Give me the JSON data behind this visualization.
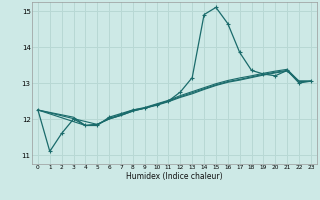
{
  "xlabel": "Humidex (Indice chaleur)",
  "xlim": [
    -0.5,
    23.5
  ],
  "ylim": [
    10.75,
    15.25
  ],
  "yticks": [
    11,
    12,
    13,
    14,
    15
  ],
  "xticks": [
    0,
    1,
    2,
    3,
    4,
    5,
    6,
    7,
    8,
    9,
    10,
    11,
    12,
    13,
    14,
    15,
    16,
    17,
    18,
    19,
    20,
    21,
    22,
    23
  ],
  "bg_color": "#cde9e6",
  "grid_color": "#b8d8d4",
  "line_color": "#1a6b6b",
  "lines": [
    {
      "x": [
        0,
        1,
        2,
        3,
        4,
        5,
        6,
        7,
        8,
        9,
        10,
        11,
        12,
        13,
        14,
        15,
        16,
        17,
        18,
        19,
        20,
        21,
        22,
        23
      ],
      "y": [
        12.25,
        11.1,
        11.6,
        12.0,
        11.82,
        11.82,
        12.05,
        12.15,
        12.25,
        12.3,
        12.4,
        12.5,
        12.75,
        13.15,
        14.9,
        15.1,
        14.65,
        13.85,
        13.35,
        13.25,
        13.2,
        13.35,
        13.0,
        13.05
      ],
      "marker": true
    },
    {
      "x": [
        0,
        3,
        4,
        5,
        6,
        7,
        8,
        9,
        10,
        11,
        12,
        13,
        14,
        15,
        16,
        17,
        18,
        19,
        20,
        21,
        22,
        23
      ],
      "y": [
        12.25,
        12.05,
        11.82,
        11.85,
        12.0,
        12.1,
        12.22,
        12.3,
        12.38,
        12.48,
        12.6,
        12.7,
        12.82,
        12.93,
        13.02,
        13.08,
        13.15,
        13.22,
        13.28,
        13.33,
        13.05,
        13.05
      ],
      "marker": false
    },
    {
      "x": [
        0,
        4,
        5,
        6,
        7,
        8,
        9,
        10,
        11,
        12,
        13,
        14,
        15,
        16,
        17,
        18,
        19,
        20,
        21,
        22,
        23
      ],
      "y": [
        12.25,
        11.82,
        11.85,
        12.0,
        12.1,
        12.22,
        12.3,
        12.4,
        12.5,
        12.62,
        12.73,
        12.84,
        12.95,
        13.04,
        13.1,
        13.17,
        13.24,
        13.3,
        13.35,
        13.05,
        13.05
      ],
      "marker": false
    },
    {
      "x": [
        0,
        5,
        6,
        7,
        8,
        9,
        10,
        11,
        12,
        13,
        14,
        15,
        16,
        17,
        18,
        19,
        20,
        21,
        22,
        23
      ],
      "y": [
        12.25,
        11.85,
        12.02,
        12.12,
        12.25,
        12.32,
        12.42,
        12.52,
        12.65,
        12.76,
        12.87,
        12.98,
        13.07,
        13.14,
        13.2,
        13.27,
        13.33,
        13.38,
        13.05,
        13.05
      ],
      "marker": false
    }
  ]
}
